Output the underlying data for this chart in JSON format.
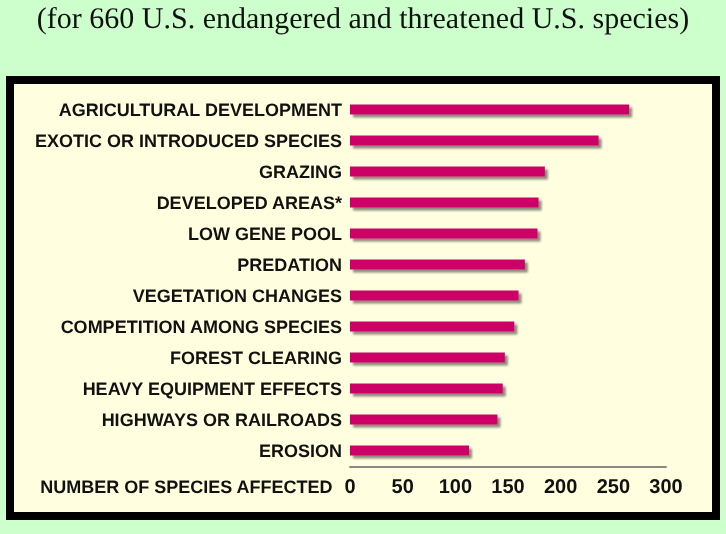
{
  "chart_data": {
    "type": "bar",
    "orientation": "horizontal",
    "title": "(for 660 U.S. endangered and threatened U.S. species)",
    "xlabel": "NUMBER OF SPECIES AFFECTED",
    "categories": [
      "AGRICULTURAL DEVELOPMENT",
      "EXOTIC OR INTRODUCED SPECIES",
      "GRAZING",
      "DEVELOPED AREAS*",
      "LOW GENE POOL",
      "PREDATION",
      "VEGETATION CHANGES",
      "COMPETITION AMONG SPECIES",
      "FOREST CLEARING",
      "HEAVY EQUIPMENT EFFECTS",
      "HIGHWAYS OR RAILROADS",
      "EROSION"
    ],
    "values": [
      265,
      236,
      185,
      179,
      178,
      166,
      160,
      156,
      147,
      145,
      140,
      113
    ],
    "color": "#cc0066",
    "xlim": [
      0,
      300
    ],
    "xticks": [
      0,
      50,
      100,
      150,
      200,
      250,
      300
    ],
    "grid": false
  }
}
